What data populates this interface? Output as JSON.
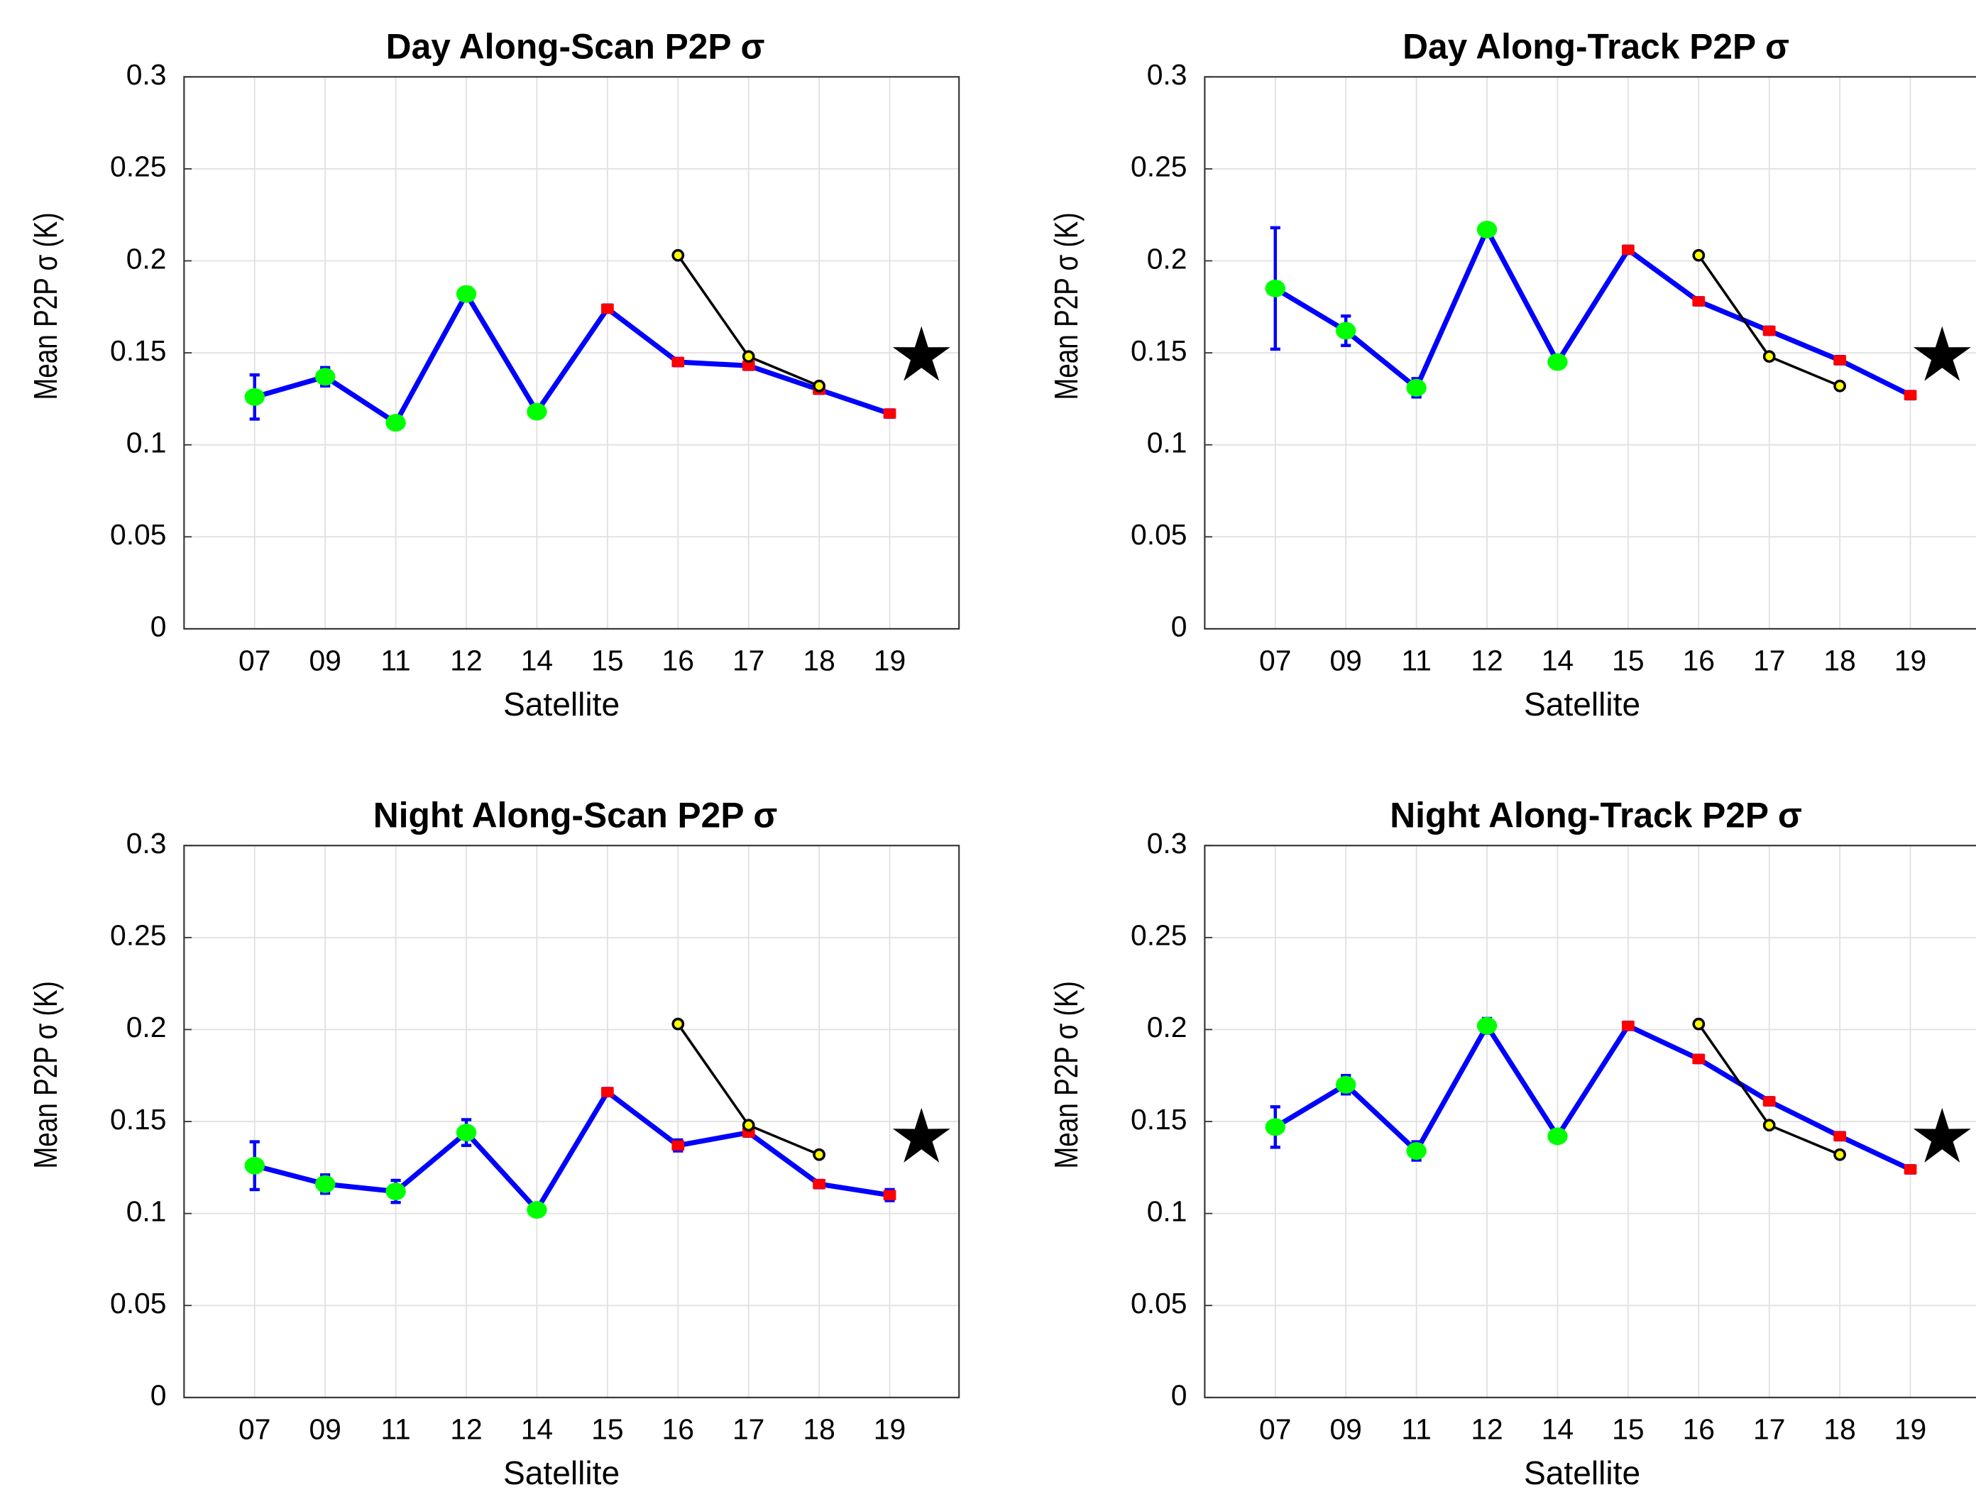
{
  "chart_data": [
    {
      "type": "line",
      "title": "Day Along-Scan P2P σ",
      "xlabel": "Satellite",
      "ylabel": "Mean P2P σ (K)",
      "categories": [
        "07",
        "09",
        "11",
        "12",
        "14",
        "15",
        "16",
        "17",
        "18",
        "19"
      ],
      "ylim": [
        0,
        0.3
      ],
      "yticks": [
        0,
        0.05,
        0.1,
        0.15,
        0.2,
        0.25,
        0.3
      ],
      "grid": true,
      "series": [
        {
          "color": "#0000ff",
          "values": [
            0.126,
            0.137,
            0.112,
            0.182,
            0.118,
            0.174,
            0.145,
            0.143,
            0.13,
            0.117
          ],
          "errors": [
            0.012,
            0.005,
            0.002,
            0.003,
            0.002,
            0.002,
            0.002,
            0.002,
            0.002,
            0.002
          ],
          "marker_colors": [
            "#00ff00",
            "#00ff00",
            "#00ff00",
            "#00ff00",
            "#00ff00",
            "#ff0000",
            "#ff0000",
            "#ff0000",
            "#ff0000",
            "#ff0000"
          ]
        },
        {
          "color": "#000000",
          "values": [
            null,
            null,
            null,
            null,
            null,
            null,
            0.203,
            0.148,
            0.132,
            null
          ],
          "marker_color": "#ffff00"
        }
      ],
      "star": {
        "value": 0.148,
        "color": "#000000"
      }
    },
    {
      "type": "line",
      "title": "Day Along-Track P2P σ",
      "xlabel": "Satellite",
      "ylabel": "Mean P2P σ (K)",
      "categories": [
        "07",
        "09",
        "11",
        "12",
        "14",
        "15",
        "16",
        "17",
        "18",
        "19"
      ],
      "ylim": [
        0,
        0.3
      ],
      "yticks": [
        0,
        0.05,
        0.1,
        0.15,
        0.2,
        0.25,
        0.3
      ],
      "grid": true,
      "series": [
        {
          "color": "#0000ff",
          "values": [
            0.185,
            0.162,
            0.131,
            0.217,
            0.145,
            0.206,
            0.178,
            0.162,
            0.146,
            0.127
          ],
          "errors": [
            0.033,
            0.008,
            0.005,
            0.003,
            0.002,
            0.002,
            0.002,
            0.002,
            0.002,
            0.002
          ],
          "marker_colors": [
            "#00ff00",
            "#00ff00",
            "#00ff00",
            "#00ff00",
            "#00ff00",
            "#ff0000",
            "#ff0000",
            "#ff0000",
            "#ff0000",
            "#ff0000"
          ]
        },
        {
          "color": "#000000",
          "values": [
            null,
            null,
            null,
            null,
            null,
            null,
            0.203,
            0.148,
            0.132,
            null
          ],
          "marker_color": "#ffff00"
        }
      ],
      "star": {
        "value": 0.148,
        "color": "#000000"
      }
    },
    {
      "type": "line",
      "title": "Night Along-Scan P2P σ",
      "xlabel": "Satellite",
      "ylabel": "Mean P2P σ (K)",
      "categories": [
        "07",
        "09",
        "11",
        "12",
        "14",
        "15",
        "16",
        "17",
        "18",
        "19"
      ],
      "ylim": [
        0,
        0.3
      ],
      "yticks": [
        0,
        0.05,
        0.1,
        0.15,
        0.2,
        0.25,
        0.3
      ],
      "grid": true,
      "series": [
        {
          "color": "#0000ff",
          "values": [
            0.126,
            0.116,
            0.112,
            0.144,
            0.102,
            0.166,
            0.137,
            0.144,
            0.116,
            0.11
          ],
          "errors": [
            0.013,
            0.005,
            0.006,
            0.007,
            0.003,
            0.002,
            0.003,
            0.002,
            0.002,
            0.003
          ],
          "marker_colors": [
            "#00ff00",
            "#00ff00",
            "#00ff00",
            "#00ff00",
            "#00ff00",
            "#ff0000",
            "#ff0000",
            "#ff0000",
            "#ff0000",
            "#ff0000"
          ]
        },
        {
          "color": "#000000",
          "values": [
            null,
            null,
            null,
            null,
            null,
            null,
            0.203,
            0.148,
            0.132,
            null
          ],
          "marker_color": "#ffff00"
        }
      ],
      "star": {
        "value": 0.141,
        "color": "#000000"
      }
    },
    {
      "type": "line",
      "title": "Night Along-Track P2P σ",
      "xlabel": "Satellite",
      "ylabel": "Mean P2P σ (K)",
      "categories": [
        "07",
        "09",
        "11",
        "12",
        "14",
        "15",
        "16",
        "17",
        "18",
        "19"
      ],
      "ylim": [
        0,
        0.3
      ],
      "yticks": [
        0,
        0.05,
        0.1,
        0.15,
        0.2,
        0.25,
        0.3
      ],
      "grid": true,
      "series": [
        {
          "color": "#0000ff",
          "values": [
            0.147,
            0.17,
            0.134,
            0.202,
            0.142,
            0.202,
            0.184,
            0.161,
            0.142,
            0.124
          ],
          "errors": [
            0.011,
            0.005,
            0.005,
            0.004,
            0.002,
            0.002,
            0.002,
            0.002,
            0.002,
            0.002
          ],
          "marker_colors": [
            "#00ff00",
            "#00ff00",
            "#00ff00",
            "#00ff00",
            "#00ff00",
            "#ff0000",
            "#ff0000",
            "#ff0000",
            "#ff0000",
            "#ff0000"
          ]
        },
        {
          "color": "#000000",
          "values": [
            null,
            null,
            null,
            null,
            null,
            null,
            0.203,
            0.148,
            0.132,
            null
          ],
          "marker_color": "#ffff00"
        }
      ],
      "star": {
        "value": 0.141,
        "color": "#000000"
      }
    }
  ]
}
